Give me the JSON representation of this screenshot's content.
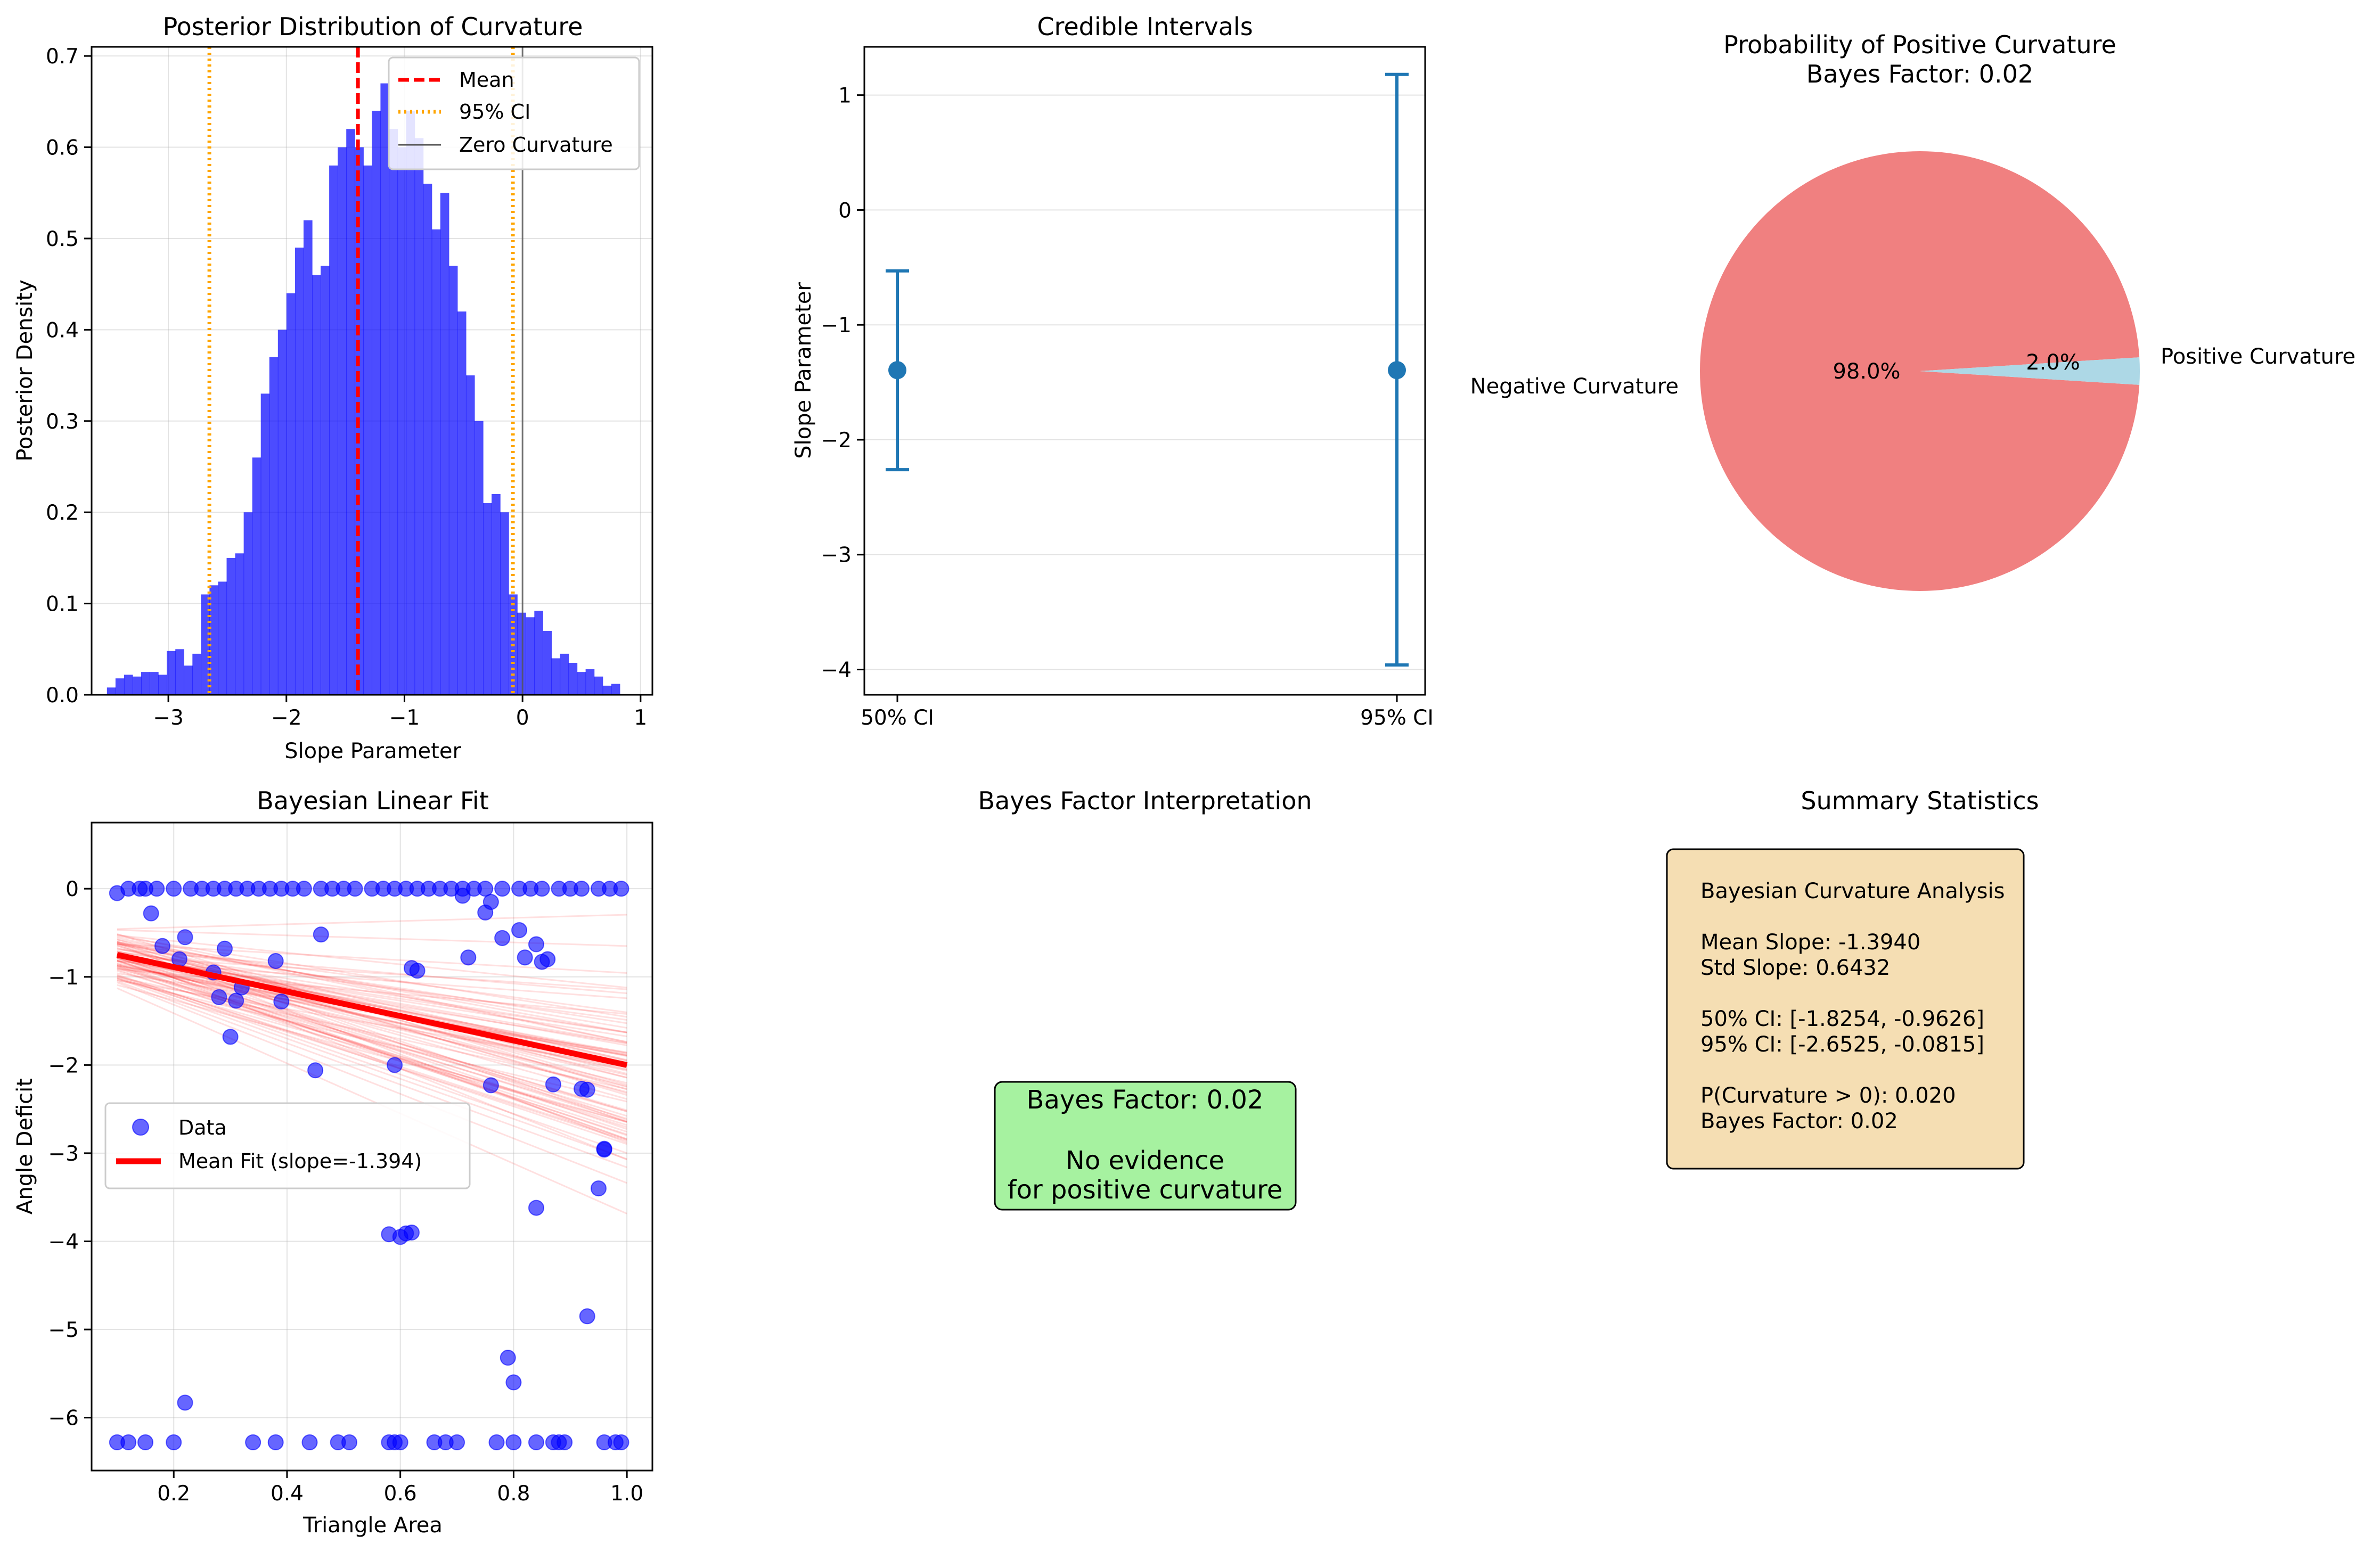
{
  "chart_data": [
    {
      "type": "histogram",
      "title": "Posterior Distribution of Curvature",
      "xlabel": "Slope Parameter",
      "ylabel": "Posterior Density",
      "xlim": [
        -3.65,
        1.1
      ],
      "ylim": [
        0,
        0.71
      ],
      "xticks": [
        -3,
        -2,
        -1,
        0,
        1
      ],
      "yticks": [
        0.0,
        0.1,
        0.2,
        0.3,
        0.4,
        0.5,
        0.6,
        0.7
      ],
      "xtick_labels": [
        "−3",
        "−2",
        "−1",
        "0",
        "1"
      ],
      "ytick_labels": [
        "0.0",
        "0.1",
        "0.2",
        "0.3",
        "0.4",
        "0.5",
        "0.6",
        "0.7"
      ],
      "bin_start": -3.52,
      "bin_width": 0.0724,
      "densities": [
        0.008,
        0.018,
        0.022,
        0.02,
        0.025,
        0.025,
        0.022,
        0.048,
        0.05,
        0.032,
        0.045,
        0.11,
        0.12,
        0.124,
        0.15,
        0.155,
        0.2,
        0.26,
        0.33,
        0.37,
        0.4,
        0.44,
        0.49,
        0.52,
        0.46,
        0.47,
        0.58,
        0.6,
        0.62,
        0.6,
        0.58,
        0.64,
        0.67,
        0.62,
        0.6,
        0.64,
        0.61,
        0.56,
        0.51,
        0.55,
        0.47,
        0.42,
        0.35,
        0.3,
        0.21,
        0.22,
        0.2,
        0.11,
        0.09,
        0.085,
        0.092,
        0.07,
        0.04,
        0.045,
        0.035,
        0.025,
        0.028,
        0.02,
        0.01,
        0.012
      ],
      "mean": -1.394,
      "ci95": [
        -2.6525,
        -0.0815
      ],
      "zero": 0,
      "color": "#0000ff",
      "legend": {
        "position": "upper right",
        "entries": [
          "Mean",
          "95% CI",
          "Zero Curvature"
        ]
      },
      "grid": true
    },
    {
      "type": "errorbar",
      "title": "Credible Intervals",
      "ylabel": "Slope Parameter",
      "xlabel": "",
      "categories": [
        "50% CI",
        "95% CI"
      ],
      "center": [
        -1.394,
        -1.394
      ],
      "lower": [
        -1.8254,
        -2.6525
      ],
      "upper": [
        -0.9626,
        -0.0815
      ],
      "displayed_whiskers": [
        [
          -2.26,
          -0.53
        ],
        [
          -3.96,
          1.18
        ]
      ],
      "ylim": [
        -4.22,
        1.42
      ],
      "yticks": [
        1,
        0,
        -1,
        -2,
        -3,
        -4
      ],
      "ytick_labels": [
        "1",
        "0",
        "−1",
        "−2",
        "−3",
        "−4"
      ],
      "color": "#1f77b4",
      "grid": true
    },
    {
      "type": "pie",
      "title": "Probability of Positive Curvature",
      "subtitle": "Bayes Factor: 0.02",
      "slices": [
        {
          "label": "Negative Curvature",
          "value": 98.0,
          "pct": "98.0%",
          "color": "#f08080"
        },
        {
          "label": "Positive Curvature",
          "value": 2.0,
          "pct": "2.0%",
          "color": "#add8e6"
        }
      ]
    },
    {
      "type": "scatter",
      "title": "Bayesian Linear Fit",
      "xlabel": "Triangle Area",
      "ylabel": "Angle Deficit",
      "xlim": [
        0.055,
        1.045
      ],
      "ylim": [
        -6.6,
        0.75
      ],
      "xticks": [
        0.2,
        0.4,
        0.6,
        0.8,
        1.0
      ],
      "xtick_labels": [
        "0.2",
        "0.4",
        "0.6",
        "0.8",
        "1.0"
      ],
      "yticks": [
        0,
        -1,
        -2,
        -3,
        -4,
        -5,
        -6
      ],
      "ytick_labels": [
        "0",
        "−1",
        "−2",
        "−3",
        "−4",
        "−5",
        "−6"
      ],
      "series": [
        {
          "name": "Data",
          "color": "#0000ff",
          "x": [
            0.1,
            0.12,
            0.14,
            0.15,
            0.17,
            0.2,
            0.23,
            0.25,
            0.27,
            0.29,
            0.31,
            0.33,
            0.35,
            0.37,
            0.39,
            0.41,
            0.43,
            0.46,
            0.48,
            0.5,
            0.52,
            0.55,
            0.57,
            0.59,
            0.61,
            0.63,
            0.65,
            0.67,
            0.69,
            0.71,
            0.73,
            0.75,
            0.78,
            0.81,
            0.83,
            0.85,
            0.88,
            0.9,
            0.92,
            0.95,
            0.97,
            0.99,
            0.16,
            0.18,
            0.21,
            0.22,
            0.27,
            0.28,
            0.29,
            0.3,
            0.31,
            0.32,
            0.38,
            0.39,
            0.45,
            0.46,
            0.59,
            0.62,
            0.63,
            0.71,
            0.72,
            0.75,
            0.76,
            0.78,
            0.81,
            0.82,
            0.84,
            0.85,
            0.86,
            0.87,
            0.92,
            0.93,
            0.95,
            0.96,
            0.58,
            0.6,
            0.61,
            0.62,
            0.22,
            0.76,
            0.79,
            0.8,
            0.84,
            0.93,
            0.96,
            0.1,
            0.12,
            0.15,
            0.2,
            0.34,
            0.38,
            0.44,
            0.49,
            0.51,
            0.58,
            0.59,
            0.6,
            0.66,
            0.68,
            0.7,
            0.77,
            0.8,
            0.84,
            0.87,
            0.88,
            0.89,
            0.96,
            0.98,
            0.99
          ],
          "y": [
            -0.05,
            0,
            0,
            0,
            0,
            0,
            0,
            0,
            0,
            0,
            0,
            0,
            0,
            0,
            0,
            0,
            0,
            0,
            0,
            0,
            0,
            0,
            0,
            0,
            0,
            0,
            0,
            0,
            0,
            0,
            0,
            0,
            0,
            0,
            0,
            0,
            0,
            0,
            0,
            0,
            0,
            0,
            -0.28,
            -0.65,
            -0.8,
            -0.55,
            -0.95,
            -1.23,
            -0.68,
            -1.68,
            -1.27,
            -1.12,
            -0.82,
            -1.28,
            -2.06,
            -0.52,
            -2.0,
            -0.9,
            -0.93,
            -0.08,
            -0.78,
            -0.27,
            -0.15,
            -0.56,
            -0.47,
            -0.78,
            -0.63,
            -0.83,
            -0.8,
            -2.22,
            -2.27,
            -4.85,
            -3.4,
            -2.96,
            -3.92,
            -3.95,
            -3.91,
            -3.9,
            -5.83,
            -2.23,
            -5.32,
            -5.6,
            -3.62,
            -2.28,
            -2.95,
            -6.28,
            -6.28,
            -6.28,
            -6.28,
            -6.28,
            -6.28,
            -6.28,
            -6.28,
            -6.28,
            -6.28,
            -6.28,
            -6.28,
            -6.28,
            -6.28,
            -6.28,
            -6.28,
            -6.28,
            -6.28,
            -6.28,
            -6.28,
            -6.28,
            -6.28,
            -6.28,
            -6.28
          ]
        },
        {
          "name": "Mean Fit (slope=-1.394)",
          "color": "#ff0000",
          "type": "line",
          "x": [
            0.1,
            1.0
          ],
          "y": [
            -0.75,
            -2.0
          ]
        }
      ],
      "posterior_line_samples": 80,
      "legend": {
        "position": "center left",
        "entries": [
          "Data",
          "Mean Fit (slope=-1.394)"
        ]
      },
      "grid": true
    }
  ],
  "bayes_panel": {
    "title": "Bayes Factor Interpretation",
    "line1": "Bayes Factor: 0.02",
    "line2": "No evidence",
    "line3": "for positive curvature",
    "bg": "#a6f2a0"
  },
  "summary_panel": {
    "title": "Summary Statistics",
    "bg": "#f5deb3",
    "lines": [
      "Bayesian Curvature Analysis",
      "",
      "Mean Slope: -1.3940",
      "Std Slope: 0.6432",
      "",
      "50% CI: [-1.8254, -0.9626]",
      "95% CI: [-2.6525, -0.0815]",
      "",
      "P(Curvature > 0): 0.020",
      "Bayes Factor: 0.02"
    ]
  }
}
